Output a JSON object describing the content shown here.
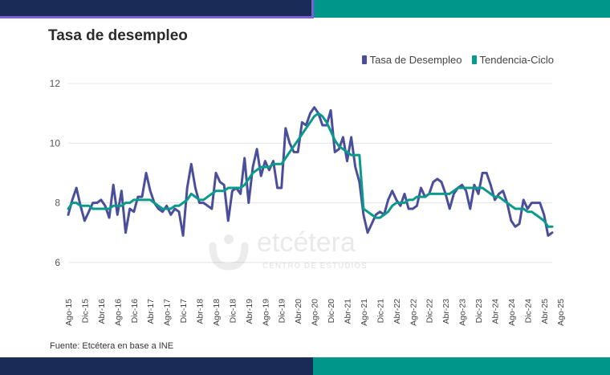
{
  "header": {
    "title": "Tasa de desempleo"
  },
  "footer": {
    "source": "Fuente: Etcétera en base a INE"
  },
  "watermark": {
    "name": "etcétera",
    "subtitle": "CENTRO DE ESTUDIOS"
  },
  "colors": {
    "navy": "#1b2b58",
    "teal": "#00968a",
    "accent": "#7b61d6",
    "series1": "#4b4f9b",
    "series2": "#0a9a8c"
  },
  "chart_data": {
    "type": "line",
    "title": "Tasa de desempleo",
    "xlabel": "",
    "ylabel": "",
    "ylim": [
      5,
      12
    ],
    "yticks": [
      6,
      8,
      10,
      12
    ],
    "grid": true,
    "legend_position": "top-right",
    "x_tick_labels": [
      "Ago-15",
      "Dic-15",
      "Abr-16",
      "Ago-16",
      "Dic-16",
      "Abr-17",
      "Ago-17",
      "Dic-17",
      "Abr-18",
      "Ago-18",
      "Dic-18",
      "Abr-19",
      "Ago-19",
      "Dic-19",
      "Abr-20",
      "Ago-20",
      "Dic-20",
      "Abr-21",
      "Ago-21",
      "Dic-21",
      "Abr-22",
      "Ago-22",
      "Dic-22",
      "Abr-23",
      "Ago-23",
      "Dic-23",
      "Abr-24",
      "Ago-24",
      "Dic-24",
      "Abr-25",
      "Ago-25"
    ],
    "series": [
      {
        "name": "Tasa de Desempleo",
        "values": [
          7.6,
          8.1,
          8.5,
          7.9,
          7.4,
          7.7,
          8.0,
          8.0,
          8.1,
          7.9,
          7.5,
          8.6,
          7.6,
          8.4,
          7.0,
          7.8,
          7.7,
          8.2,
          8.2,
          9.0,
          8.4,
          8.0,
          7.8,
          7.7,
          7.9,
          7.6,
          7.8,
          7.7,
          6.9,
          8.5,
          9.3,
          8.5,
          8.0,
          8.0,
          7.9,
          7.8,
          9.0,
          8.7,
          8.6,
          7.4,
          8.4,
          8.5,
          8.3,
          9.5,
          8.0,
          9.2,
          9.8,
          8.9,
          9.4,
          9.1,
          9.4,
          8.5,
          8.5,
          10.5,
          10.0,
          9.7,
          9.7,
          10.7,
          10.6,
          11.0,
          11.2,
          11.0,
          10.6,
          10.6,
          11.1,
          9.7,
          9.8,
          10.2,
          9.4,
          10.2,
          9.2,
          8.7,
          7.6,
          7.0,
          7.3,
          7.6,
          7.7,
          7.6,
          8.1,
          8.4,
          8.1,
          7.9,
          8.3,
          7.8,
          7.8,
          7.9,
          8.5,
          8.2,
          8.3,
          8.7,
          8.8,
          8.7,
          8.3,
          7.8,
          8.3,
          8.5,
          8.6,
          8.4,
          7.8,
          8.6,
          8.3,
          9.0,
          9.0,
          8.6,
          8.1,
          8.3,
          8.4,
          8.0,
          7.4,
          7.2,
          7.3,
          8.1,
          7.8,
          8.0,
          8.0,
          8.0,
          7.6,
          6.9,
          7.0
        ],
        "color": "#4b4f9b"
      },
      {
        "name": "Tendencia-Ciclo",
        "values": [
          7.8,
          8.0,
          8.0,
          7.9,
          7.9,
          7.9,
          7.8,
          7.8,
          7.8,
          7.8,
          7.8,
          7.9,
          7.9,
          7.9,
          8.0,
          8.0,
          8.1,
          8.1,
          8.1,
          8.1,
          8.1,
          8.0,
          7.9,
          7.8,
          7.8,
          7.8,
          7.9,
          7.9,
          8.0,
          8.1,
          8.3,
          8.2,
          8.1,
          8.1,
          8.2,
          8.3,
          8.4,
          8.4,
          8.4,
          8.5,
          8.5,
          8.5,
          8.5,
          8.6,
          8.8,
          9.0,
          9.1,
          9.2,
          9.2,
          9.2,
          9.3,
          9.3,
          9.3,
          9.5,
          9.7,
          9.9,
          10.1,
          10.3,
          10.5,
          10.7,
          10.9,
          11.0,
          10.9,
          10.7,
          10.4,
          10.1,
          9.9,
          9.8,
          9.7,
          9.6,
          9.6,
          9.6,
          7.8,
          7.7,
          7.6,
          7.5,
          7.5,
          7.6,
          7.7,
          7.9,
          8.0,
          8.0,
          8.0,
          8.1,
          8.1,
          8.2,
          8.2,
          8.2,
          8.3,
          8.3,
          8.3,
          8.3,
          8.3,
          8.3,
          8.4,
          8.5,
          8.5,
          8.5,
          8.5,
          8.5,
          8.5,
          8.5,
          8.4,
          8.3,
          8.2,
          8.2,
          8.1,
          8.0,
          7.9,
          7.8,
          7.8,
          7.8,
          7.7,
          7.7,
          7.6,
          7.5,
          7.4,
          7.2,
          7.2
        ],
        "color": "#0a9a8c"
      }
    ]
  }
}
